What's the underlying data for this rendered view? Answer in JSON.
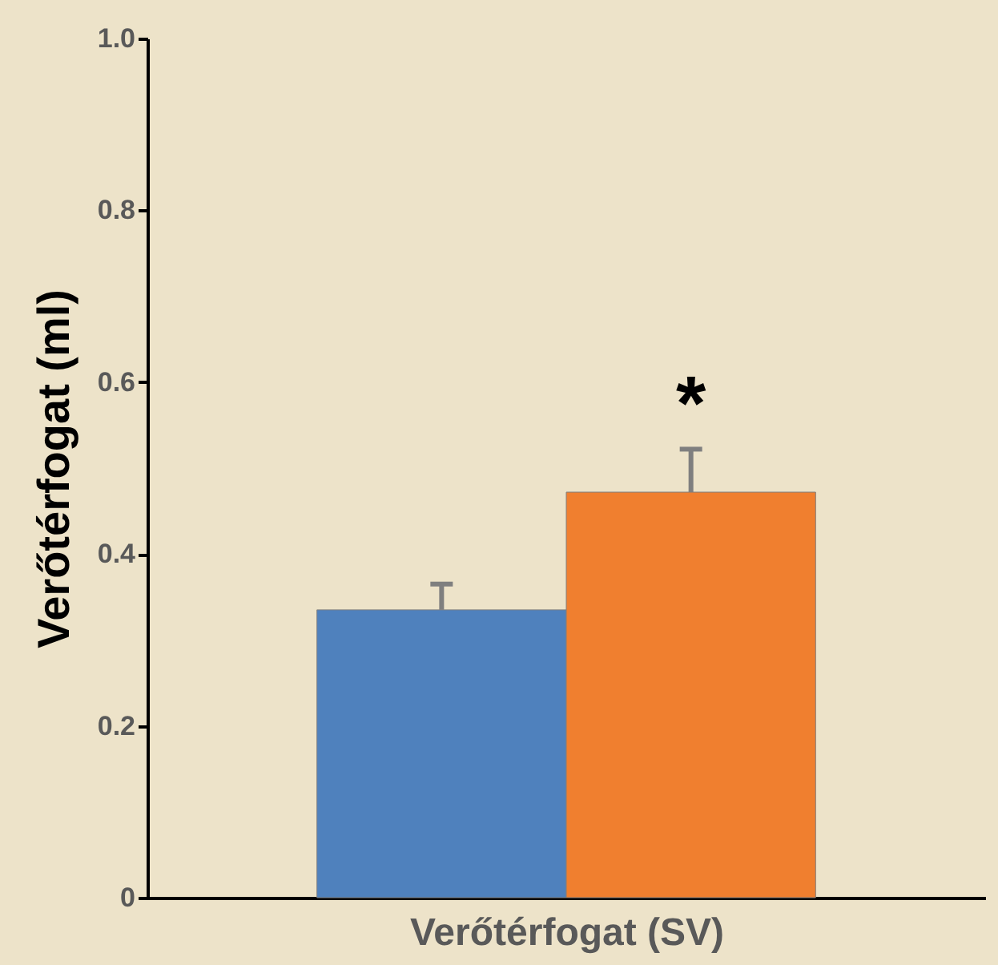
{
  "chart_data": {
    "type": "bar",
    "xlabel": "Verőtérfogat (SV)",
    "ylabel": "Verőtérfogat (ml)",
    "categories": [
      null,
      null
    ],
    "values": [
      0.335,
      0.472
    ],
    "colors": [
      "#4f81bd",
      "#f07f2f"
    ],
    "errors": [
      [
        0.335,
        0.365
      ],
      [
        0.472,
        0.522
      ]
    ],
    "ylim": [
      0,
      1
    ],
    "yticks": [
      {
        "value": 0,
        "label": "0"
      },
      0.2,
      0.4,
      0.6,
      0.8,
      {
        "value": 1,
        "label": "1.0"
      }
    ],
    "tick_labels": "y",
    "grid": false,
    "annotations": [
      "*"
    ]
  }
}
